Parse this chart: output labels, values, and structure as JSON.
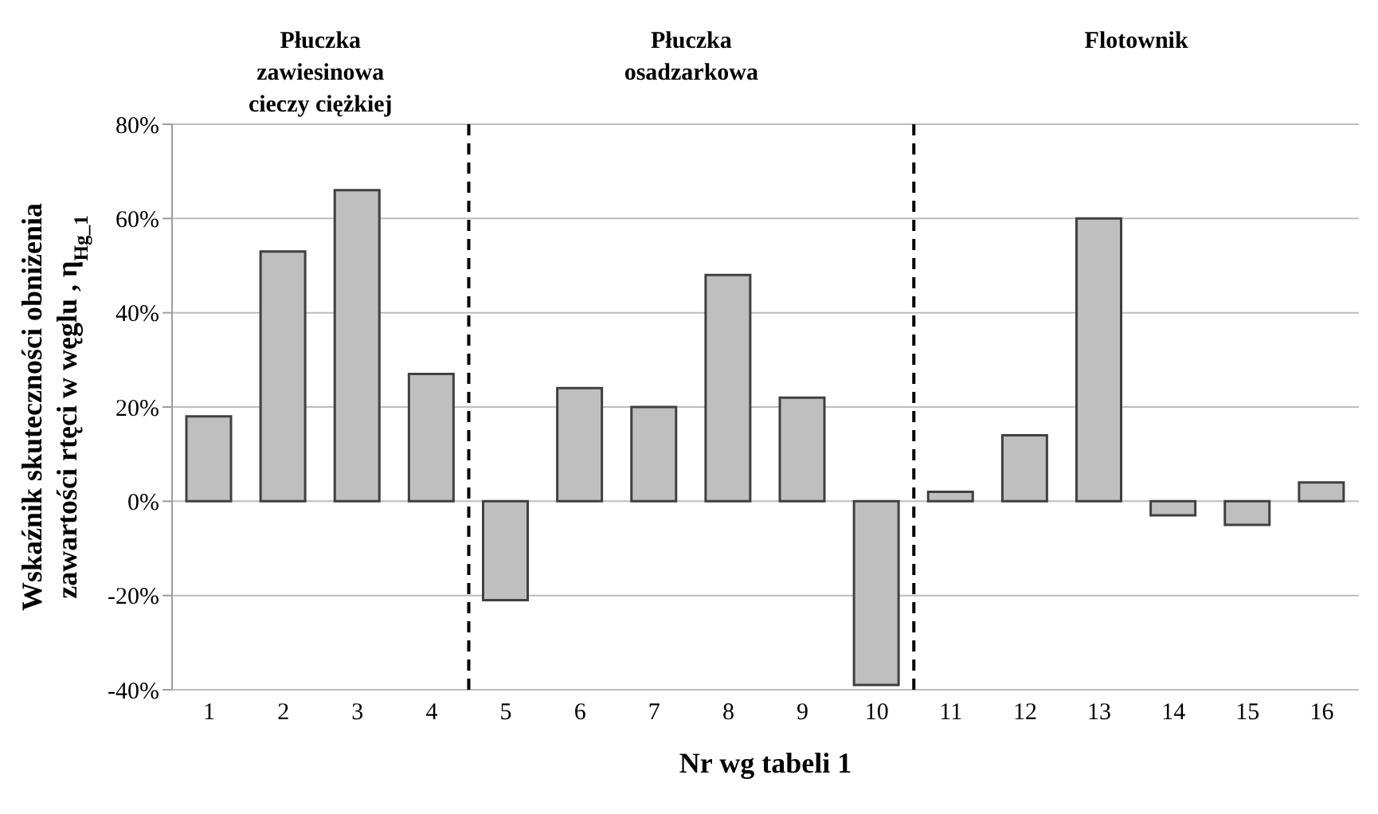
{
  "chart_data": {
    "type": "bar",
    "xlabel": "Nr wg tabeli 1",
    "ylabel": "Wskaźnik skuteczności obniżenia\nzawartości rtęci w węglu , η$_{Hg_1}$",
    "x": [
      1,
      2,
      3,
      4,
      5,
      6,
      7,
      8,
      9,
      10,
      11,
      12,
      13,
      14,
      15,
      16
    ],
    "values": [
      18,
      53,
      66,
      27,
      -21,
      24,
      20,
      48,
      22,
      -39,
      2,
      14,
      60,
      -3,
      -5,
      4
    ],
    "color": "#bfbfbf",
    "xlim": [
      0.5,
      16.5
    ],
    "xticks": [
      1,
      2,
      3,
      4,
      5,
      6,
      7,
      8,
      9,
      10,
      11,
      12,
      13,
      14,
      15,
      16
    ],
    "ylim": [
      -40,
      80
    ],
    "yticks": [
      {
        "value": -40,
        "label": "-40%"
      },
      {
        "value": -20,
        "label": "-20%"
      },
      {
        "value": 0,
        "label": "0%"
      },
      {
        "value": 20,
        "label": "20%"
      },
      {
        "value": 40,
        "label": "40%"
      },
      {
        "value": 60,
        "label": "60%"
      },
      {
        "value": 80,
        "label": "80%"
      }
    ],
    "grid": "y",
    "legend": false,
    "ref_lines": [
      {
        "axis": "x",
        "value": 4.5,
        "color": "#000000",
        "line_style": "dashed"
      },
      {
        "axis": "x",
        "value": 10.5,
        "color": "#000000",
        "line_style": "dashed"
      }
    ],
    "annotations": [
      "Płuczka zawiesinowa cieczy ciężkiej",
      "Płuczka osadzarkowa",
      "Flotownik"
    ]
  }
}
